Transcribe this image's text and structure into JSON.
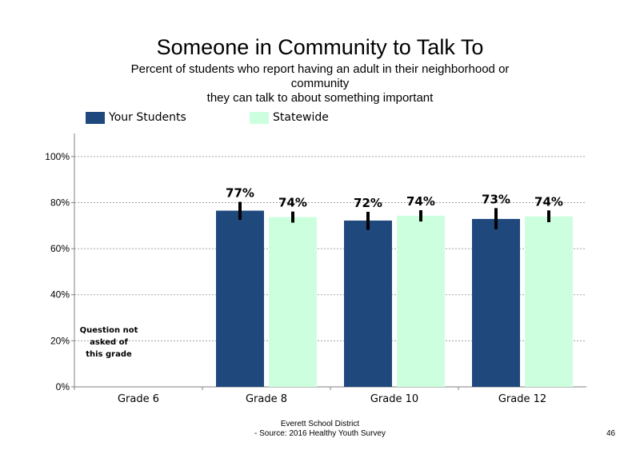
{
  "chart_data": {
    "type": "bar",
    "title": "Someone in Community to Talk To",
    "subtitle_lines": [
      "Percent of students who report having an adult in their neighborhood or",
      "community",
      "they can talk to about something important"
    ],
    "categories": [
      "Grade 6",
      "Grade 8",
      "Grade 10",
      "Grade 12"
    ],
    "series": [
      {
        "name": "Your Students",
        "color": "#1f497d",
        "values": [
          null,
          76.5,
          72.2,
          72.9
        ],
        "labels": [
          "",
          "77%",
          "72%",
          "73%"
        ],
        "error": [
          null,
          [
            72.5,
            80.3
          ],
          [
            68.2,
            76.0
          ],
          [
            68.4,
            77.6
          ]
        ]
      },
      {
        "name": "Statewide",
        "color": "#ccffdd",
        "values": [
          null,
          73.7,
          74.3,
          74.0
        ],
        "labels": [
          "",
          "74%",
          "74%",
          "74%"
        ],
        "error": [
          null,
          [
            71.3,
            76.1
          ],
          [
            71.8,
            76.7
          ],
          [
            71.5,
            76.6
          ]
        ]
      }
    ],
    "y_ticks": [
      "0%",
      "20%",
      "40%",
      "60%",
      "80%",
      "100%"
    ],
    "ylim": [
      0,
      100
    ],
    "grid": "dotted",
    "legend": "top",
    "annotations": [
      {
        "category": "Grade 6",
        "lines": [
          "Question not",
          "asked of",
          "this grade"
        ]
      }
    ]
  },
  "footer": {
    "line1": "Everett School District",
    "line2": "- Source: 2016 Healthy Youth Survey",
    "page_number": "46"
  }
}
